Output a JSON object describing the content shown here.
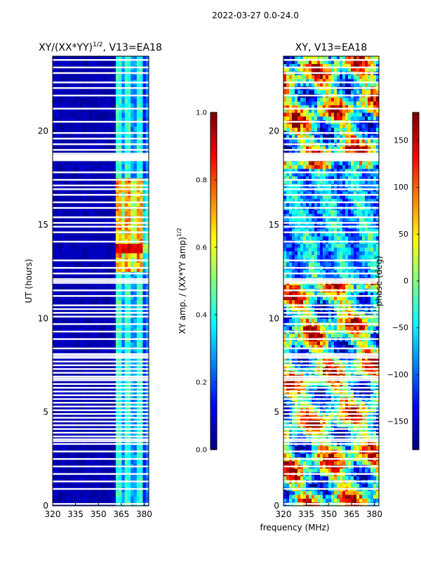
{
  "suptitle": "2022-03-27 0.0-24.0",
  "shared_xlabel": "frequency (MHz)",
  "chart_data": [
    {
      "type": "heatmap",
      "title": "XY/(XX*YY)",
      "title_exp": "1/2",
      "title_suffix": ", V13=EA18",
      "xlabel": "",
      "ylabel": "UT (hours)",
      "xlim": [
        320,
        383
      ],
      "ylim": [
        0,
        24
      ],
      "xticks": [
        320,
        335,
        350,
        365,
        380
      ],
      "yticks": [
        0,
        5,
        10,
        15,
        20
      ],
      "colorbar": {
        "label": "XY amp. / (XX*YY amp)",
        "label_exp": "1/2",
        "range": [
          0.0,
          1.0
        ],
        "ticks": [
          "0.0",
          "0.2",
          "0.4",
          "0.6",
          "0.8",
          "1.0"
        ]
      },
      "description_bands": {
        "low_signal_freq_range": [
          320,
          361
        ],
        "high_signal_freq_range": [
          361,
          380
        ],
        "peak_time_range_hours": [
          12.5,
          17.5
        ],
        "peak_amplitude": 0.75
      }
    },
    {
      "type": "heatmap",
      "title": "XY, V13=EA18",
      "xlabel": "frequency (MHz)",
      "ylabel": "",
      "xlim": [
        320,
        383
      ],
      "ylim": [
        0,
        24
      ],
      "xticks": [
        320,
        335,
        350,
        365,
        380
      ],
      "yticks": [
        0,
        5,
        10,
        15,
        20
      ],
      "colorbar": {
        "label": "phase (deg)",
        "range": [
          -180,
          180
        ],
        "ticks": [
          "150",
          "100",
          "50",
          "0",
          "−50",
          "−100",
          "−150"
        ]
      }
    }
  ],
  "flagged_rows_hours": [
    0.1,
    0.9,
    1.3,
    1.7,
    2.1,
    2.5,
    2.9,
    3.3,
    3.45,
    3.55,
    3.7,
    3.9,
    4.1,
    4.3,
    4.5,
    4.7,
    4.9,
    5.1,
    5.3,
    5.5,
    5.7,
    5.9,
    6.1,
    6.3,
    6.5,
    6.7,
    6.8,
    6.9,
    7.1,
    7.3,
    7.5,
    7.7,
    7.9,
    8.0,
    8.1,
    8.4,
    8.9,
    9.3,
    9.7,
    10.1,
    10.3,
    10.5,
    10.7,
    11.2,
    11.5,
    11.9,
    12.0,
    12.1,
    12.4,
    12.7,
    13.1,
    14.1,
    14.6,
    14.9,
    15.1,
    15.4,
    15.9,
    16.2,
    16.6,
    16.9,
    17.1,
    17.4,
    17.8,
    18.6,
    18.7,
    18.8,
    19.0,
    19.3,
    19.6,
    19.9,
    20.5,
    21.2,
    21.9,
    22.3,
    22.6,
    23.1,
    23.4,
    23.8
  ]
}
